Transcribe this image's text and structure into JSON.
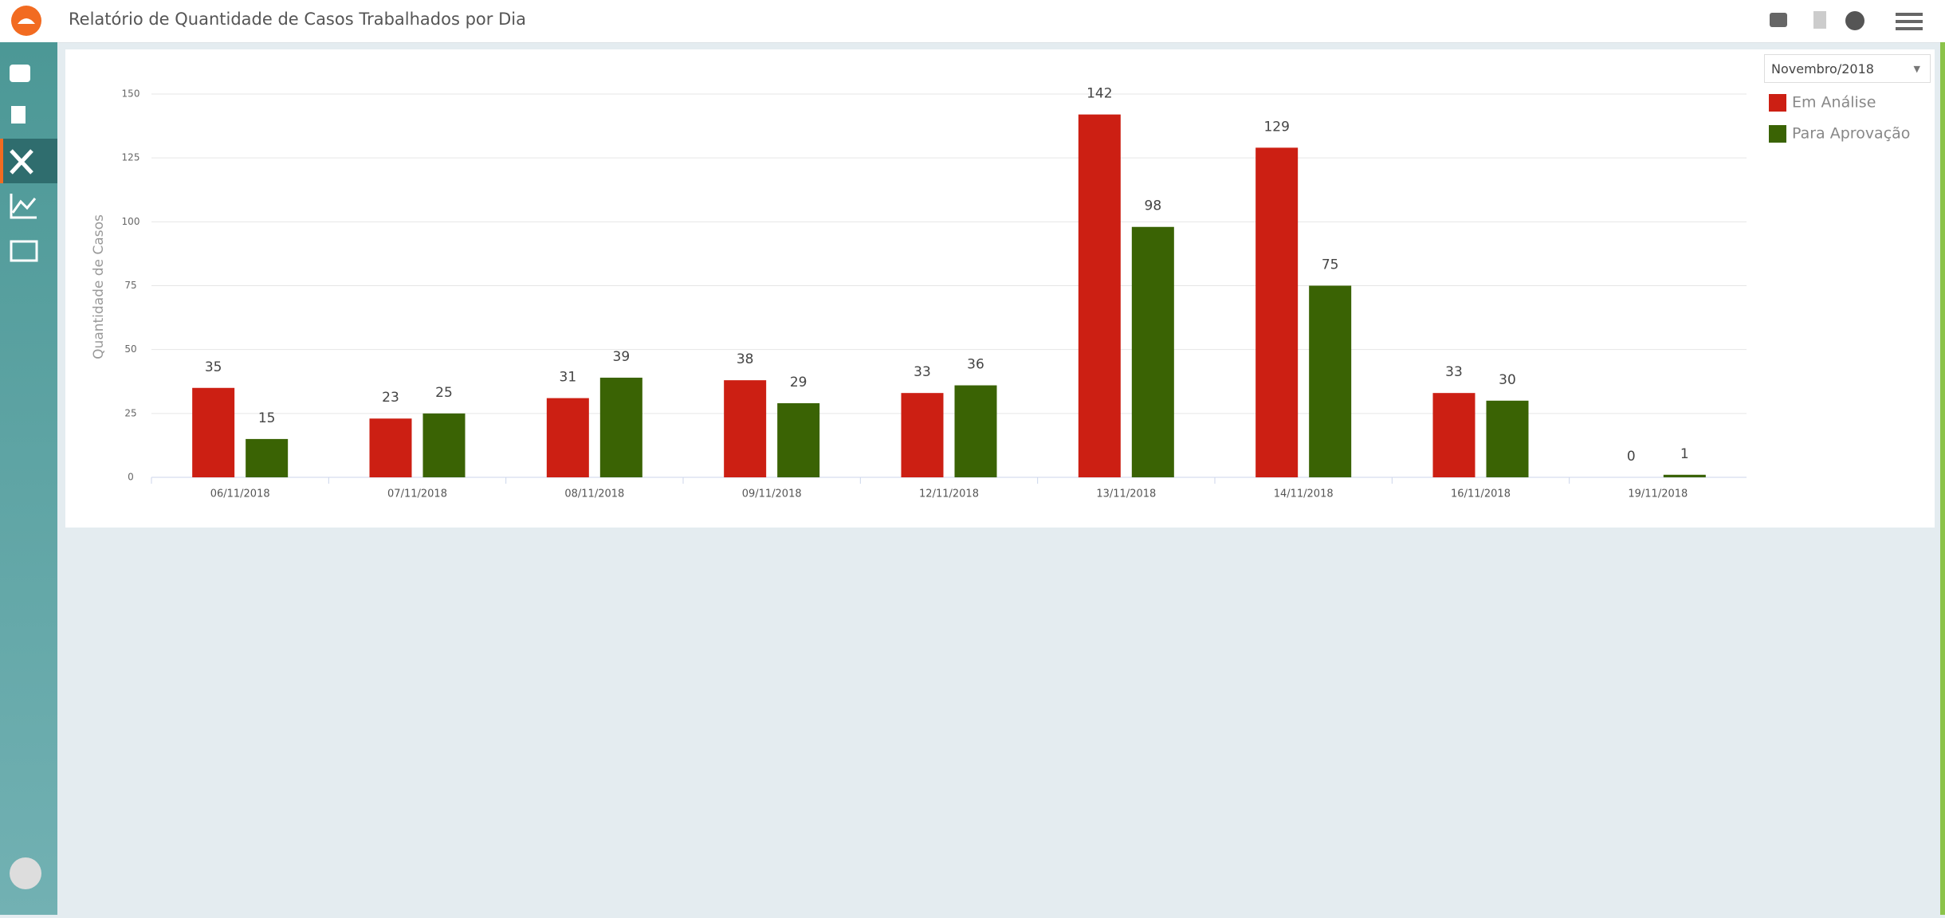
{
  "header": {
    "title": "Relatório de Quantidade de Casos Trabalhados por Dia"
  },
  "filter": {
    "month": "Novembro/2018"
  },
  "chart_data": {
    "type": "bar",
    "y_label": "Quantidade de Casos",
    "categories": [
      "06/11/2018",
      "07/11/2018",
      "08/11/2018",
      "09/11/2018",
      "12/11/2018",
      "13/11/2018",
      "14/11/2018",
      "16/11/2018",
      "19/11/2018"
    ],
    "series": [
      {
        "name": "Em Análise",
        "color": "#cc1f13",
        "values": [
          35,
          23,
          31,
          38,
          33,
          142,
          129,
          33,
          0
        ]
      },
      {
        "name": "Para Aprovação",
        "color": "#3a6304",
        "values": [
          15,
          25,
          39,
          29,
          36,
          98,
          75,
          30,
          1
        ]
      }
    ],
    "ylim": [
      0,
      150
    ],
    "yticks": [
      0,
      25,
      50,
      75,
      100,
      125,
      150
    ],
    "grid": true,
    "legend": "top-right"
  }
}
